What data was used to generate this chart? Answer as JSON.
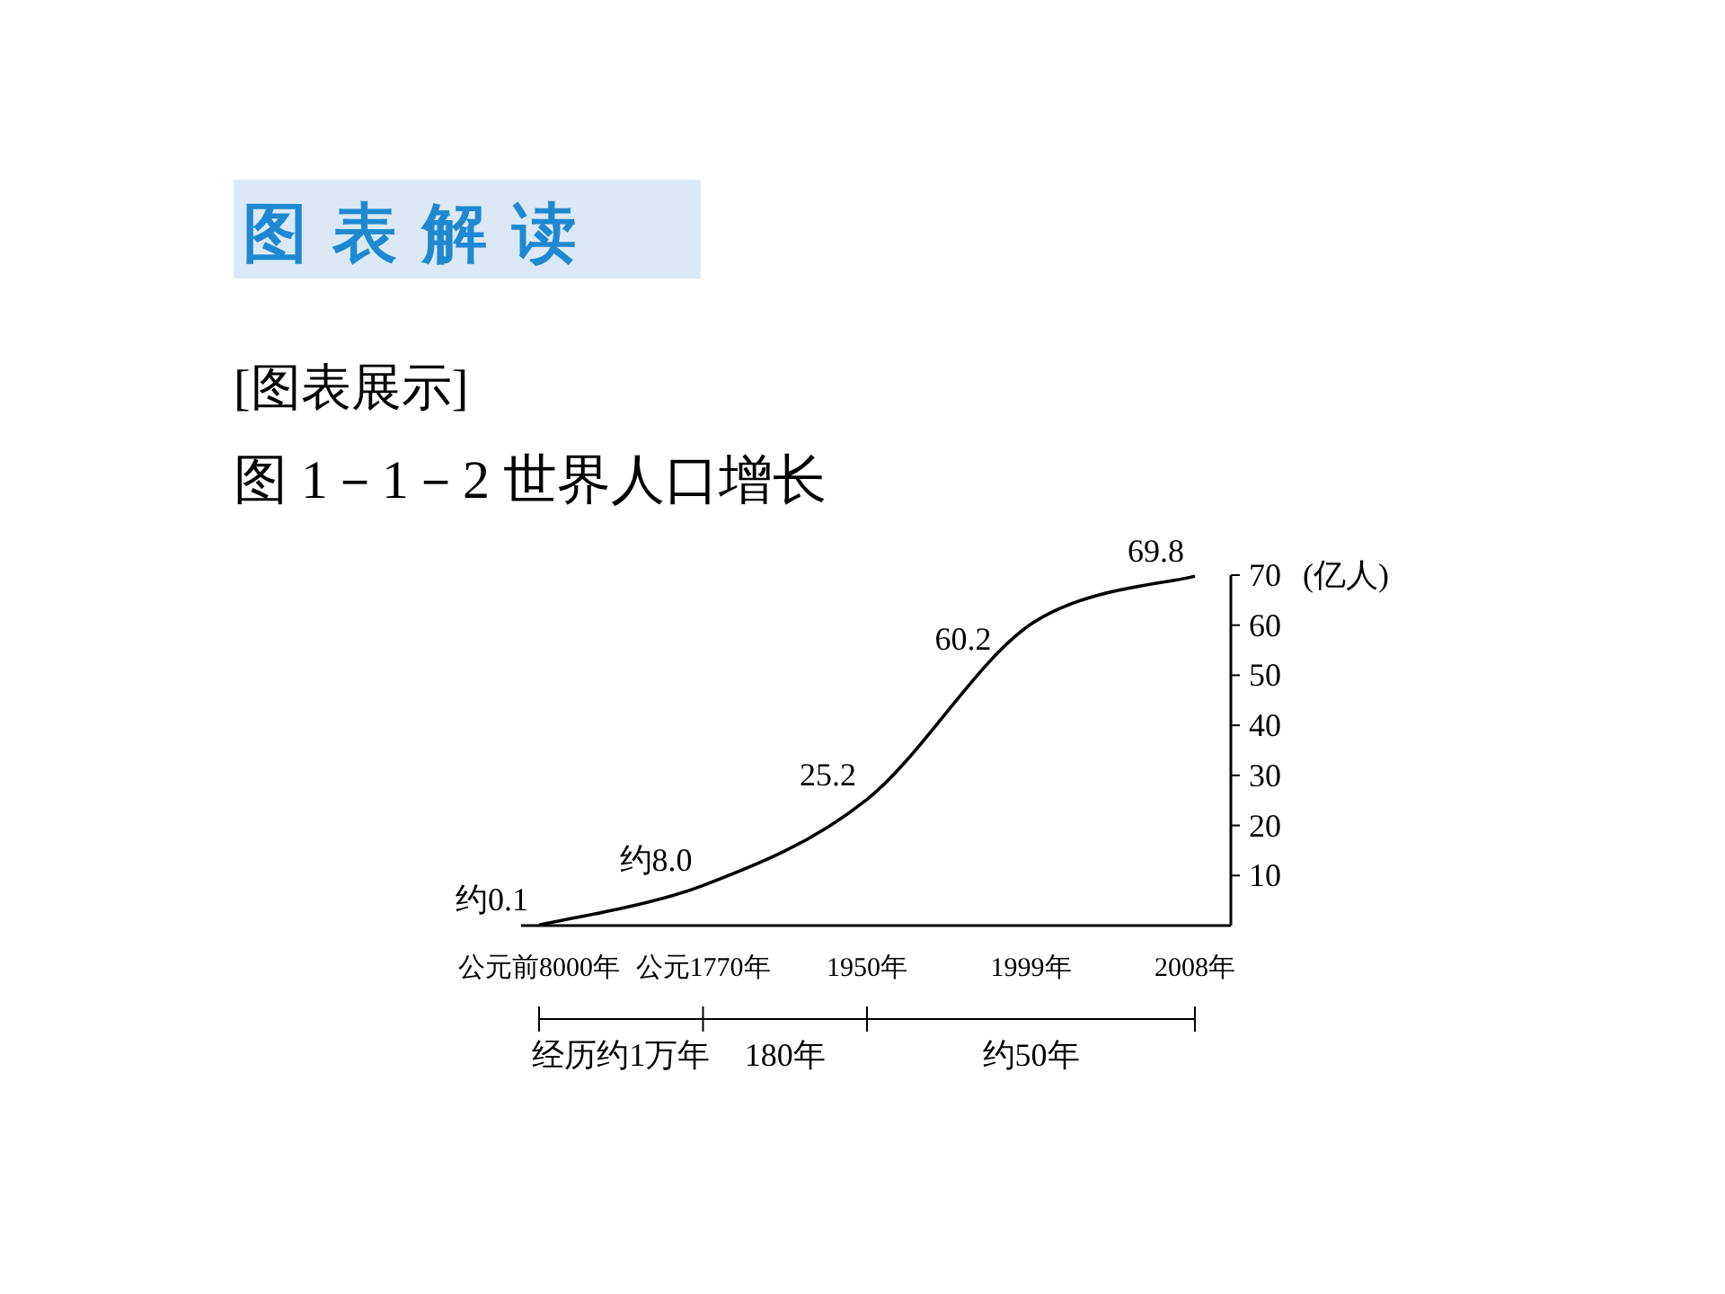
{
  "chart_data": {
    "type": "line",
    "title": "图 1－1－2 世界人口增长",
    "subtitle": "[图表展示]",
    "ylabel": "(亿人)",
    "categories": [
      "公元前8000年",
      "公元1770年",
      "1950年",
      "1999年",
      "2008年"
    ],
    "values": [
      0.1,
      8.0,
      25.2,
      60.2,
      69.8
    ],
    "value_labels": [
      "约0.1",
      "约8.0",
      "25.2",
      "60.2",
      "69.8"
    ],
    "color": "#000000",
    "ylim": [
      0,
      70
    ],
    "yticks": [
      10,
      20,
      30,
      40,
      50,
      60,
      70
    ],
    "annotations": [
      "图表解读",
      "经历约1万年",
      "180年",
      "约50年"
    ]
  }
}
